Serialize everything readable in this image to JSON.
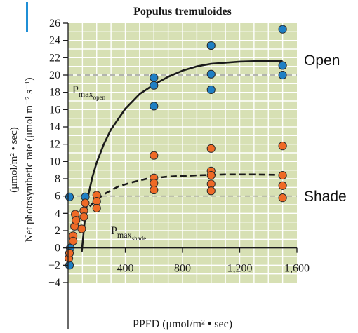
{
  "chart_data": {
    "type": "scatter",
    "title": "Populus tremuloides",
    "xlabel": "PPFD (μmol/m² • sec)",
    "ylabel_line1": "Net photosynthetic rate (μmol m⁻² s⁻¹)",
    "ylabel_line2": "(μmol/m² • sec)",
    "xlim": [
      0,
      1600
    ],
    "ylim": [
      -4,
      26
    ],
    "x_ticks": [
      {
        "value": 400,
        "label": "400"
      },
      {
        "value": 800,
        "label": "800"
      },
      {
        "value": 1200,
        "label": "1,200"
      },
      {
        "value": 1600,
        "label": "1,600"
      }
    ],
    "y_ticks": [
      {
        "value": -4,
        "label": "−4"
      },
      {
        "value": -2,
        "label": "−2"
      },
      {
        "value": 0,
        "label": "0"
      },
      {
        "value": 2,
        "label": "2"
      },
      {
        "value": 4,
        "label": "4"
      },
      {
        "value": 6,
        "label": "6"
      },
      {
        "value": 8,
        "label": "8"
      },
      {
        "value": 10,
        "label": "10"
      },
      {
        "value": 12,
        "label": "12"
      },
      {
        "value": 14,
        "label": "14"
      },
      {
        "value": 16,
        "label": "16"
      },
      {
        "value": 18,
        "label": "18"
      },
      {
        "value": 20,
        "label": "20"
      },
      {
        "value": 22,
        "label": "22"
      },
      {
        "value": 24,
        "label": "24"
      },
      {
        "value": 26,
        "label": "26"
      }
    ],
    "grid": true,
    "colors": {
      "plot_bg": "#d7e0b4",
      "grid": "#ffffff",
      "open": "#1f7fc4",
      "shade": "#ef6a26",
      "curve": "#1a1a1a",
      "pmax_line": "#a0a0a0",
      "accent_bar": "#1f8fd6"
    },
    "series": [
      {
        "name": "Open",
        "color": "#1f7fc4",
        "points": [
          {
            "x": 10,
            "y": -2.0
          },
          {
            "x": 15,
            "y": 0.0
          },
          {
            "x": 10,
            "y": 5.9
          },
          {
            "x": 120,
            "y": 5.9
          },
          {
            "x": 600,
            "y": 19.7
          },
          {
            "x": 600,
            "y": 18.8
          },
          {
            "x": 600,
            "y": 16.4
          },
          {
            "x": 1000,
            "y": 23.4
          },
          {
            "x": 1000,
            "y": 20.1
          },
          {
            "x": 1000,
            "y": 18.3
          },
          {
            "x": 1500,
            "y": 25.3
          },
          {
            "x": 1500,
            "y": 21.1
          },
          {
            "x": 1500,
            "y": 20.0
          }
        ],
        "curve": [
          {
            "x": 95,
            "y": -0.5
          },
          {
            "x": 105,
            "y": 1.2
          },
          {
            "x": 120,
            "y": 3.8
          },
          {
            "x": 140,
            "y": 6.0
          },
          {
            "x": 170,
            "y": 8.2
          },
          {
            "x": 200,
            "y": 9.9
          },
          {
            "x": 250,
            "y": 12.0
          },
          {
            "x": 300,
            "y": 13.7
          },
          {
            "x": 400,
            "y": 16.1
          },
          {
            "x": 500,
            "y": 17.8
          },
          {
            "x": 600,
            "y": 18.9
          },
          {
            "x": 700,
            "y": 19.8
          },
          {
            "x": 800,
            "y": 20.5
          },
          {
            "x": 900,
            "y": 21.0
          },
          {
            "x": 1000,
            "y": 21.3
          },
          {
            "x": 1200,
            "y": 21.55
          },
          {
            "x": 1400,
            "y": 21.65
          },
          {
            "x": 1500,
            "y": 21.6
          }
        ],
        "pmax": 20.0,
        "pmax_label": "P",
        "pmax_sub": "max",
        "pmax_sub2": "open"
      },
      {
        "name": "Shade",
        "color": "#ef6a26",
        "points": [
          {
            "x": 5,
            "y": -1.2
          },
          {
            "x": 10,
            "y": -0.6
          },
          {
            "x": 35,
            "y": 1.4
          },
          {
            "x": 35,
            "y": 0.8
          },
          {
            "x": 45,
            "y": 2.5
          },
          {
            "x": 50,
            "y": 3.9
          },
          {
            "x": 55,
            "y": 3.2
          },
          {
            "x": 95,
            "y": 2.2
          },
          {
            "x": 110,
            "y": 4.3
          },
          {
            "x": 110,
            "y": 3.6
          },
          {
            "x": 120,
            "y": 5.2
          },
          {
            "x": 200,
            "y": 6.1
          },
          {
            "x": 200,
            "y": 5.4
          },
          {
            "x": 200,
            "y": 4.6
          },
          {
            "x": 600,
            "y": 10.7
          },
          {
            "x": 600,
            "y": 8.1
          },
          {
            "x": 600,
            "y": 7.5
          },
          {
            "x": 600,
            "y": 6.7
          },
          {
            "x": 1000,
            "y": 11.5
          },
          {
            "x": 1000,
            "y": 8.9
          },
          {
            "x": 1000,
            "y": 8.4
          },
          {
            "x": 1000,
            "y": 7.4
          },
          {
            "x": 1000,
            "y": 6.6
          },
          {
            "x": 1500,
            "y": 11.8
          },
          {
            "x": 1500,
            "y": 8.4
          },
          {
            "x": 1500,
            "y": 7.2
          },
          {
            "x": 1500,
            "y": 5.8
          }
        ],
        "curve": [
          {
            "x": 110,
            "y": 3.9
          },
          {
            "x": 140,
            "y": 4.6
          },
          {
            "x": 180,
            "y": 5.3
          },
          {
            "x": 250,
            "y": 6.2
          },
          {
            "x": 350,
            "y": 7.1
          },
          {
            "x": 450,
            "y": 7.6
          },
          {
            "x": 550,
            "y": 8.0
          },
          {
            "x": 700,
            "y": 8.25
          },
          {
            "x": 900,
            "y": 8.4
          },
          {
            "x": 1100,
            "y": 8.5
          },
          {
            "x": 1300,
            "y": 8.5
          },
          {
            "x": 1500,
            "y": 8.45
          }
        ],
        "pmax": 6.0,
        "pmax_label": "P",
        "pmax_sub": "max",
        "pmax_sub2": "shade"
      }
    ],
    "annotations": {
      "open_label": "Open",
      "shade_label": "Shade"
    }
  }
}
